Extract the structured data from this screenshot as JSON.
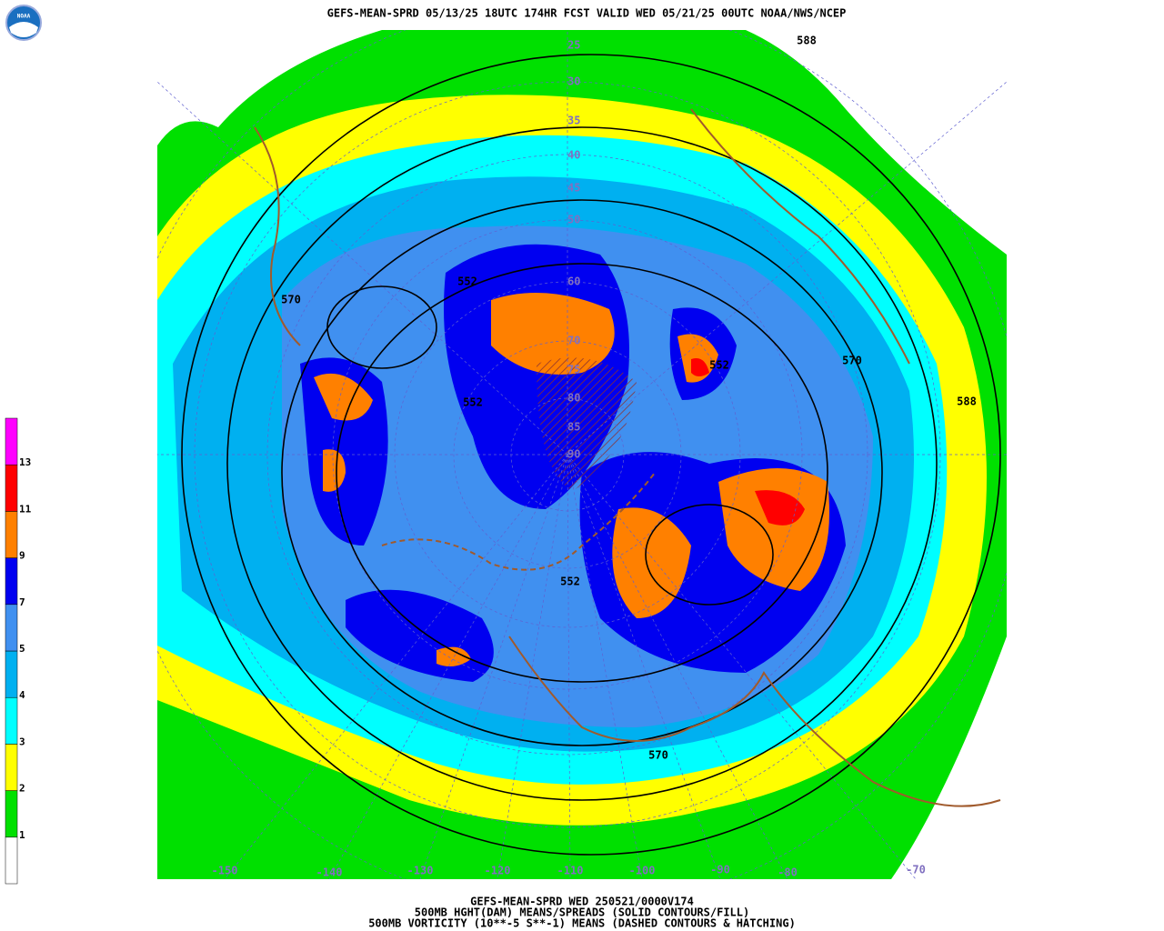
{
  "header": {
    "title": "GEFS-MEAN-SPRD 05/13/25 18UTC 174HR FCST VALID WED 05/21/25 00UTC NOAA/NWS/NCEP",
    "logo": "NOAA"
  },
  "colorbar": {
    "labels": [
      "1",
      "2",
      "3",
      "4",
      "5",
      "7",
      "9",
      "11",
      "13"
    ],
    "colors": [
      "#ffffff",
      "#00e000",
      "#ffff00",
      "#00ffff",
      "#00b0f0",
      "#4090f0",
      "#0000f0",
      "#ff8000",
      "#ff0000",
      "#ff00ff"
    ]
  },
  "map": {
    "latitude_labels": [
      "25",
      "30",
      "35",
      "40",
      "45",
      "50",
      "60",
      "70",
      "75",
      "80",
      "85",
      "90"
    ],
    "longitude_labels": [
      "-150",
      "-140",
      "-130",
      "-120",
      "-110",
      "-100",
      "-90",
      "-80",
      "-70"
    ],
    "contour_labels": [
      "552",
      "552",
      "552",
      "552",
      "570",
      "570",
      "570",
      "588",
      "588"
    ]
  },
  "footer": {
    "lines": [
      "GEFS-MEAN-SPRD WED 250521/0000V174",
      "500MB HGHT(DAM) MEANS/SPREADS (SOLID CONTOURS/FILL)",
      "500MB VORTICITY (10**-5 S**-1) MEANS (DASHED CONTOURS & HATCHING)"
    ]
  }
}
